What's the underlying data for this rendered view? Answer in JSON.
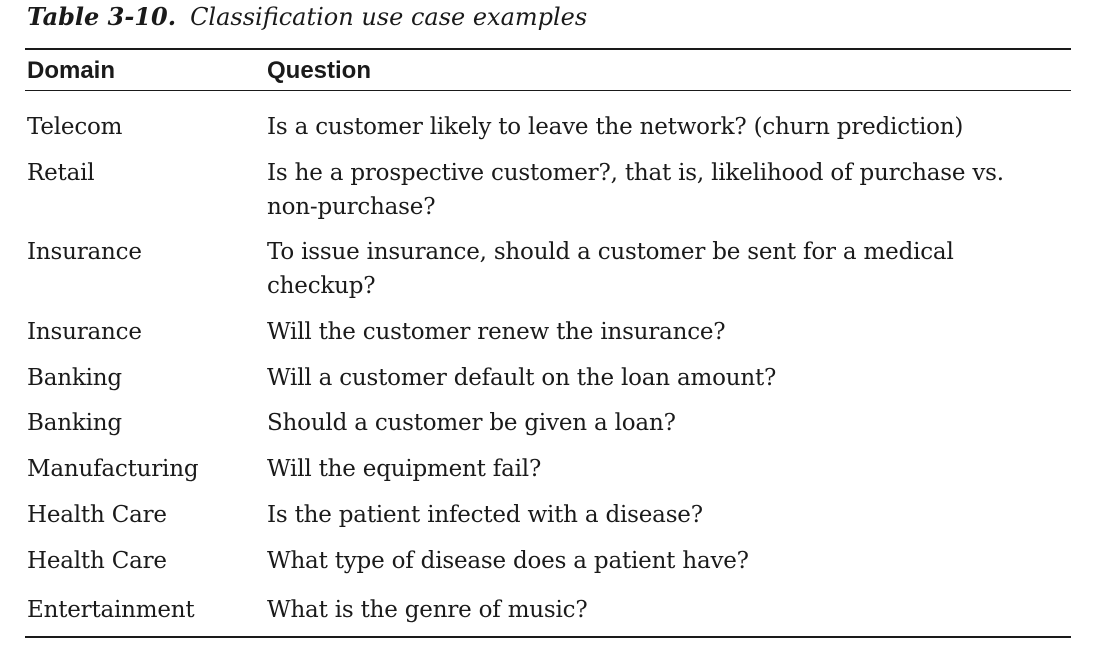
{
  "caption": {
    "label": "Table 3-10.",
    "title": "Classification use case examples"
  },
  "table": {
    "headers": {
      "domain": "Domain",
      "question": "Question"
    },
    "rows": [
      {
        "domain": "Telecom",
        "question": "Is a customer likely to leave the network? (churn prediction)"
      },
      {
        "domain": "Retail",
        "question": "Is he a prospective customer?, that is, likelihood of purchase vs. non-purchase?"
      },
      {
        "domain": "Insurance",
        "question": "To issue insurance, should a customer be sent for a medical checkup?"
      },
      {
        "domain": "Insurance",
        "question": "Will the customer renew the insurance?"
      },
      {
        "domain": "Banking",
        "question": "Will a customer default on the loan amount?"
      },
      {
        "domain": "Banking",
        "question": "Should a customer be given a loan?"
      },
      {
        "domain": "Manufacturing",
        "question": "Will the equipment fail?"
      },
      {
        "domain": "Health Care",
        "question": "Is the patient infected with a disease?"
      },
      {
        "domain": "Health Care",
        "question": "What type of disease does a patient have?"
      },
      {
        "domain": "Entertainment",
        "question": "What is the genre of music?"
      }
    ]
  }
}
